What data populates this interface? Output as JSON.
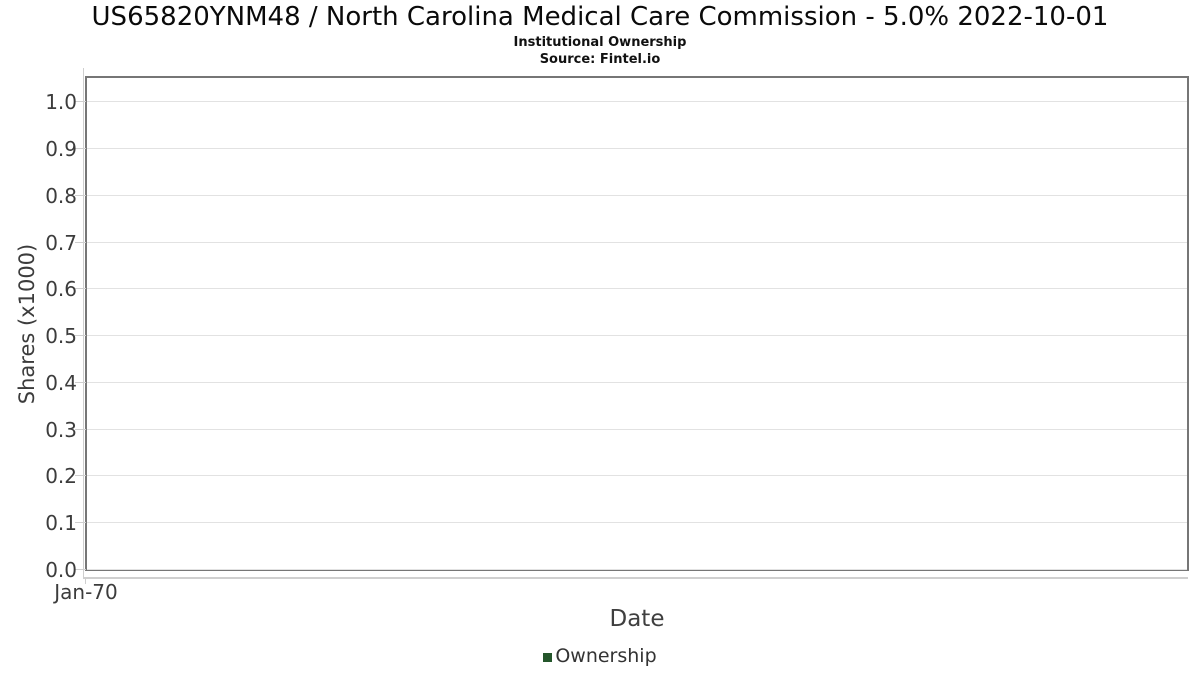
{
  "chart_data": {
    "type": "line",
    "title": "US65820YNM48 / North Carolina Medical Care Commission - 5.0% 2022-10-01",
    "subtitle": "Institutional Ownership",
    "source": "Source: Fintel.io",
    "xlabel": "Date",
    "ylabel": "Shares (x1000)",
    "x_ticks": [
      "Jan-70"
    ],
    "y_ticks": [
      "0.0",
      "0.1",
      "0.2",
      "0.3",
      "0.4",
      "0.5",
      "0.6",
      "0.7",
      "0.8",
      "0.9",
      "1.0"
    ],
    "ylim": [
      0,
      1.05
    ],
    "grid": true,
    "legend_position": "bottom-center",
    "legend": [
      {
        "name": "Ownership",
        "color": "#24562b"
      }
    ],
    "series": [
      {
        "name": "Ownership",
        "color": "#24562b",
        "x": [],
        "y": []
      }
    ]
  },
  "colors": {
    "grid": "#e2e2e2",
    "axis": "#cfcfcf",
    "plot_border": "#767676",
    "tick_text": "#3c3c3c",
    "legend_marker": "#24562b"
  }
}
